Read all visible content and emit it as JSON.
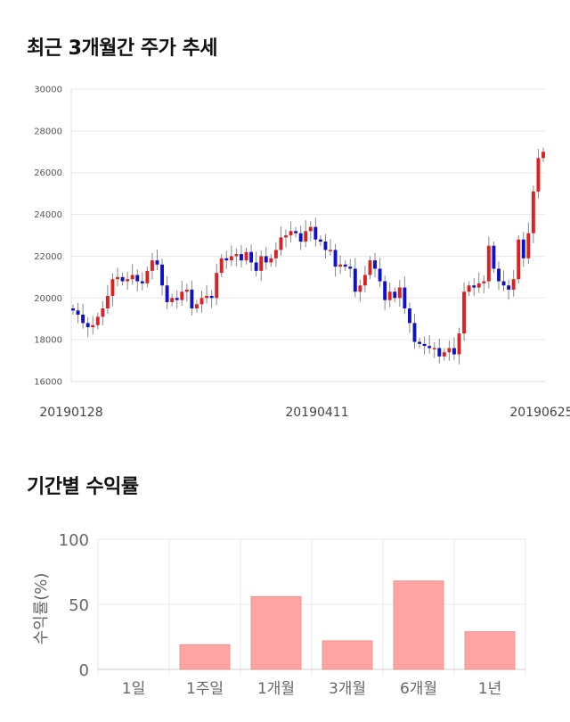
{
  "sections": {
    "price_title": "최근 3개월간 주가 추세",
    "return_title": "기간별 수익률"
  },
  "chart_data": [
    {
      "type": "candlestick",
      "title": "최근 3개월간 주가 추세",
      "ylim": [
        16000,
        30000
      ],
      "yticks": [
        16000,
        18000,
        20000,
        22000,
        24000,
        26000,
        28000,
        30000
      ],
      "date_labels": [
        "20190128",
        "20190411",
        "20190625"
      ],
      "grid": true,
      "colors": {
        "up": "#e02020",
        "down": "#1010c8",
        "wick": "#888888"
      },
      "closes": [
        19400,
        19200,
        18800,
        18600,
        18700,
        19100,
        19500,
        20100,
        20900,
        21000,
        20800,
        20900,
        21100,
        20800,
        20700,
        21300,
        21800,
        21600,
        20600,
        19800,
        20000,
        19900,
        20300,
        20400,
        19500,
        19700,
        20000,
        20100,
        20000,
        21200,
        21900,
        21800,
        22000,
        22100,
        21800,
        22200,
        21700,
        21300,
        22000,
        21700,
        21900,
        22300,
        22900,
        23000,
        23200,
        23100,
        22700,
        23200,
        23400,
        22800,
        22700,
        22300,
        22300,
        21500,
        21600,
        21500,
        21400,
        20300,
        20600,
        21100,
        21800,
        21400,
        20800,
        19900,
        20300,
        20000,
        20500,
        19500,
        18800,
        17900,
        17800,
        17700,
        17600,
        17600,
        17200,
        17400,
        17600,
        17300,
        18300,
        20300,
        20600,
        20500,
        20700,
        20800,
        22500,
        21400,
        20800,
        20600,
        20400,
        20900,
        22800,
        21900,
        23100,
        25100,
        26700,
        27000
      ],
      "opens": [
        19500,
        19400,
        19200,
        18800,
        18600,
        18700,
        19100,
        19500,
        20100,
        20900,
        21000,
        20800,
        20900,
        21100,
        20800,
        20700,
        21300,
        21800,
        21600,
        20600,
        19800,
        20000,
        19900,
        20300,
        20400,
        19500,
        19700,
        20000,
        20100,
        20000,
        21200,
        21900,
        21800,
        22000,
        22100,
        21800,
        22200,
        21700,
        21300,
        22000,
        21700,
        21900,
        22300,
        22900,
        23000,
        23200,
        23100,
        22700,
        23200,
        23400,
        22800,
        22700,
        22300,
        22300,
        21500,
        21600,
        21500,
        21400,
        20300,
        20600,
        21100,
        21800,
        21400,
        20800,
        19900,
        20300,
        20000,
        20500,
        19500,
        18800,
        17900,
        17800,
        17700,
        17600,
        17600,
        17200,
        17400,
        17600,
        17300,
        18300,
        20300,
        20600,
        20500,
        20700,
        20800,
        22500,
        21400,
        20800,
        20600,
        20400,
        20900,
        22800,
        21900,
        23100,
        25100,
        26700
      ]
    },
    {
      "type": "bar",
      "title": "기간별 수익률",
      "ylabel": "수익률(%)",
      "categories": [
        "1일",
        "1주일",
        "1개월",
        "3개월",
        "6개월",
        "1년"
      ],
      "values": [
        0,
        19,
        56,
        22,
        68,
        29
      ],
      "ylim": [
        0,
        100
      ],
      "yticks": [
        0,
        50,
        100
      ],
      "grid": true,
      "colors": {
        "bar": "#ffa3a3",
        "bar_edge": "#e88888"
      }
    }
  ]
}
